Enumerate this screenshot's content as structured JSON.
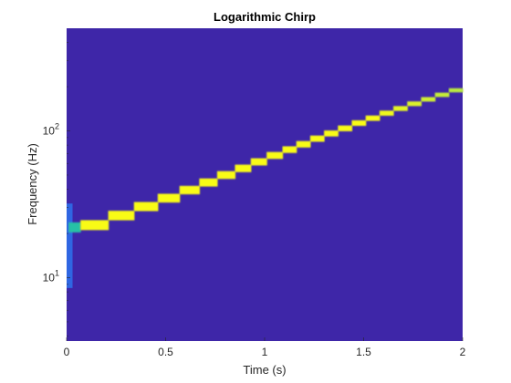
{
  "chart_data": {
    "type": "heatmap",
    "title": "Logarithmic Chirp",
    "xlabel": "Time (s)",
    "ylabel": "Frequency (Hz)",
    "xlim": [
      0,
      2
    ],
    "ylim": [
      3.7,
      500
    ],
    "yscale": "log",
    "x_ticks": [
      {
        "value": 0,
        "label": "0"
      },
      {
        "value": 0.5,
        "label": "0.5"
      },
      {
        "value": 1,
        "label": "1"
      },
      {
        "value": 1.5,
        "label": "1.5"
      },
      {
        "value": 2,
        "label": "2"
      }
    ],
    "y_ticks": [
      {
        "value": 10,
        "base": "10",
        "exp": "1"
      },
      {
        "value": 100,
        "base": "10",
        "exp": "2"
      }
    ],
    "grid": false,
    "colormap": "parula",
    "colors": {
      "background": "#3E26A8",
      "peak": "#F9FB15",
      "ridge": "#E6E81C",
      "start_cyan": "#27C2A6",
      "start_blue": "#2C77F0",
      "axis": "#262626"
    },
    "series": [
      {
        "segments": [
          {
            "t0": 0.01,
            "t1": 0.07,
            "f": 22,
            "intensity": 0.55
          },
          {
            "t0": 0.07,
            "t1": 0.21,
            "f": 22.8,
            "intensity": 1
          },
          {
            "t0": 0.21,
            "t1": 0.34,
            "f": 26.5,
            "intensity": 1
          },
          {
            "t0": 0.34,
            "t1": 0.46,
            "f": 30.5,
            "intensity": 1
          },
          {
            "t0": 0.46,
            "t1": 0.57,
            "f": 34.8,
            "intensity": 1
          },
          {
            "t0": 0.57,
            "t1": 0.67,
            "f": 39.5,
            "intensity": 1
          },
          {
            "t0": 0.67,
            "t1": 0.76,
            "f": 44.5,
            "intensity": 1
          },
          {
            "t0": 0.76,
            "t1": 0.85,
            "f": 50,
            "intensity": 1
          },
          {
            "t0": 0.85,
            "t1": 0.93,
            "f": 55.5,
            "intensity": 1
          },
          {
            "t0": 0.93,
            "t1": 1.01,
            "f": 61.5,
            "intensity": 1
          },
          {
            "t0": 1.01,
            "t1": 1.09,
            "f": 68,
            "intensity": 1
          },
          {
            "t0": 1.09,
            "t1": 1.16,
            "f": 74.5,
            "intensity": 1
          },
          {
            "t0": 1.16,
            "t1": 1.23,
            "f": 81,
            "intensity": 1
          },
          {
            "t0": 1.23,
            "t1": 1.3,
            "f": 88.5,
            "intensity": 1
          },
          {
            "t0": 1.3,
            "t1": 1.37,
            "f": 96,
            "intensity": 1
          },
          {
            "t0": 1.37,
            "t1": 1.44,
            "f": 104,
            "intensity": 1
          },
          {
            "t0": 1.44,
            "t1": 1.51,
            "f": 113,
            "intensity": 1
          },
          {
            "t0": 1.51,
            "t1": 1.58,
            "f": 122,
            "intensity": 1
          },
          {
            "t0": 1.58,
            "t1": 1.65,
            "f": 132,
            "intensity": 0.95
          },
          {
            "t0": 1.65,
            "t1": 1.72,
            "f": 142,
            "intensity": 0.9
          },
          {
            "t0": 1.72,
            "t1": 1.79,
            "f": 153,
            "intensity": 0.85
          },
          {
            "t0": 1.79,
            "t1": 1.86,
            "f": 164,
            "intensity": 0.8
          },
          {
            "t0": 1.86,
            "t1": 1.93,
            "f": 176,
            "intensity": 0.75
          },
          {
            "t0": 1.93,
            "t1": 2.0,
            "f": 189,
            "intensity": 0.7
          }
        ],
        "startup_smear": {
          "t0": 0,
          "t1": 0.03,
          "f_min": 8.5,
          "f_max": 32,
          "intensity": 0.35
        }
      }
    ]
  }
}
